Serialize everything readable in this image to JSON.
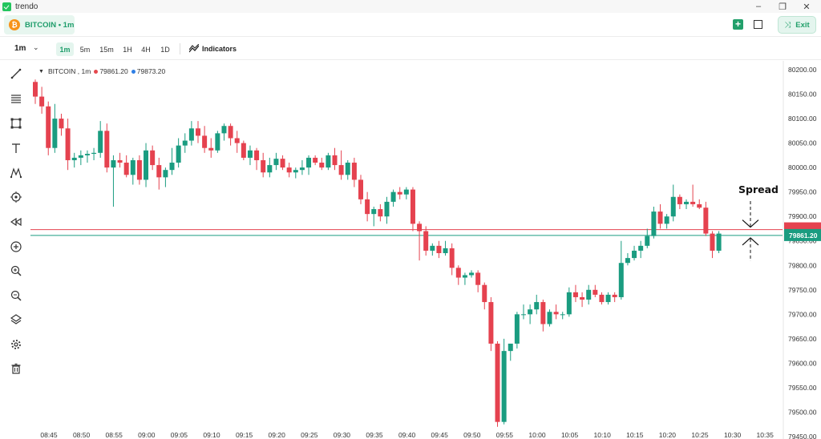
{
  "window": {
    "title": "trendo",
    "min_icon": "minimize-icon",
    "max_icon": "restore-icon",
    "close_icon": "close-icon"
  },
  "header": {
    "symbol_tab": "BITCOIN • 1m",
    "coin_glyph": "₿",
    "exit_label": "Exit",
    "add_icon": "plus-icon",
    "layout_icon": "square-icon"
  },
  "toolbar": {
    "interval": "1m",
    "timeframes": [
      {
        "label": "1m",
        "active": true
      },
      {
        "label": "5m",
        "active": false
      },
      {
        "label": "15m",
        "active": false
      },
      {
        "label": "1H",
        "active": false
      },
      {
        "label": "4H",
        "active": false
      },
      {
        "label": "1D",
        "active": false
      }
    ],
    "indicators_label": "Indicators"
  },
  "left_tools": [
    "trend-line-icon",
    "horizontal-lines-icon",
    "rectangle-icon",
    "text-icon",
    "pattern-icon",
    "target-icon",
    "rewind-icon",
    "add-icon",
    "zoom-in-icon",
    "zoom-out-icon",
    "layers-icon",
    "settings-icon",
    "trash-icon"
  ],
  "legend": {
    "symbol": "BITCOIN , 1m",
    "bid": "79861.20",
    "ask": "79873.20",
    "bid_color": "#e5484d",
    "ask_color": "#2f7fe5"
  },
  "colors": {
    "up": "#1a9c80",
    "down": "#e5424f",
    "ask_line": "#e5424f",
    "bid_line": "#1a9c80"
  },
  "annotation": {
    "text": "Spread"
  },
  "chart_data": {
    "type": "candlestick",
    "ylim": [
      79450,
      80200
    ],
    "y_ticks": [
      79450,
      79500,
      79550,
      79600,
      79650,
      79700,
      79750,
      79800,
      79850,
      79900,
      79950,
      80000,
      80050,
      80100,
      80150,
      80200
    ],
    "x_ticks": [
      "08:45",
      "08:50",
      "08:55",
      "09:00",
      "09:05",
      "09:10",
      "09:15",
      "09:20",
      "09:25",
      "09:30",
      "09:35",
      "09:40",
      "09:45",
      "09:50",
      "09:55",
      "10:00",
      "10:05",
      "10:10",
      "10:15",
      "10:20",
      "10:25",
      "10:30",
      "10:35"
    ],
    "ask_price": 79873.2,
    "bid_price": 79861.2,
    "bid_label": "79861.20",
    "candles": [
      {
        "t": "08:45",
        "o": 80175,
        "h": 80180,
        "l": 80130,
        "c": 80145
      },
      {
        "t": "08:46",
        "o": 80145,
        "h": 80165,
        "l": 80110,
        "c": 80125
      },
      {
        "t": "08:47",
        "o": 80125,
        "h": 80135,
        "l": 80025,
        "c": 80040
      },
      {
        "t": "08:48",
        "o": 80040,
        "h": 80130,
        "l": 80030,
        "c": 80100
      },
      {
        "t": "08:49",
        "o": 80100,
        "h": 80110,
        "l": 80065,
        "c": 80080
      },
      {
        "t": "08:50",
        "o": 80080,
        "h": 80100,
        "l": 79995,
        "c": 80015
      },
      {
        "t": "08:51",
        "o": 80015,
        "h": 80030,
        "l": 80000,
        "c": 80020
      },
      {
        "t": "08:52",
        "o": 80020,
        "h": 80035,
        "l": 80005,
        "c": 80025
      },
      {
        "t": "08:53",
        "o": 80025,
        "h": 80035,
        "l": 80010,
        "c": 80028
      },
      {
        "t": "08:54",
        "o": 80028,
        "h": 80040,
        "l": 80015,
        "c": 80030
      },
      {
        "t": "08:55",
        "o": 80030,
        "h": 80095,
        "l": 80020,
        "c": 80075
      },
      {
        "t": "08:56",
        "o": 80075,
        "h": 80090,
        "l": 79990,
        "c": 80000
      },
      {
        "t": "08:57",
        "o": 80000,
        "h": 80025,
        "l": 79920,
        "c": 80015
      },
      {
        "t": "08:58",
        "o": 80015,
        "h": 80030,
        "l": 80000,
        "c": 80010
      },
      {
        "t": "08:59",
        "o": 80010,
        "h": 80025,
        "l": 79980,
        "c": 79985
      },
      {
        "t": "09:00",
        "o": 79985,
        "h": 80020,
        "l": 79965,
        "c": 80015
      },
      {
        "t": "09:01",
        "o": 80015,
        "h": 80025,
        "l": 79965,
        "c": 79975
      },
      {
        "t": "09:02",
        "o": 79975,
        "h": 80050,
        "l": 79960,
        "c": 80035
      },
      {
        "t": "09:03",
        "o": 80035,
        "h": 80045,
        "l": 79995,
        "c": 80005
      },
      {
        "t": "09:04",
        "o": 80005,
        "h": 80020,
        "l": 79955,
        "c": 79980
      },
      {
        "t": "09:05",
        "o": 79980,
        "h": 80000,
        "l": 79960,
        "c": 79995
      },
      {
        "t": "09:06",
        "o": 79995,
        "h": 80040,
        "l": 79985,
        "c": 80010
      },
      {
        "t": "09:07",
        "o": 80010,
        "h": 80060,
        "l": 80000,
        "c": 80045
      },
      {
        "t": "09:08",
        "o": 80045,
        "h": 80070,
        "l": 80030,
        "c": 80055
      },
      {
        "t": "09:09",
        "o": 80055,
        "h": 80095,
        "l": 80045,
        "c": 80080
      },
      {
        "t": "09:10",
        "o": 80080,
        "h": 80095,
        "l": 80050,
        "c": 80065
      },
      {
        "t": "09:11",
        "o": 80065,
        "h": 80085,
        "l": 80030,
        "c": 80040
      },
      {
        "t": "09:12",
        "o": 80040,
        "h": 80060,
        "l": 80020,
        "c": 80035
      },
      {
        "t": "09:13",
        "o": 80035,
        "h": 80075,
        "l": 80030,
        "c": 80070
      },
      {
        "t": "09:14",
        "o": 80070,
        "h": 80090,
        "l": 80055,
        "c": 80085
      },
      {
        "t": "09:15",
        "o": 80085,
        "h": 80090,
        "l": 80045,
        "c": 80060
      },
      {
        "t": "09:16",
        "o": 80060,
        "h": 80075,
        "l": 80030,
        "c": 80050
      },
      {
        "t": "09:17",
        "o": 80050,
        "h": 80055,
        "l": 80015,
        "c": 80020
      },
      {
        "t": "09:18",
        "o": 80020,
        "h": 80045,
        "l": 80005,
        "c": 80035
      },
      {
        "t": "09:19",
        "o": 80035,
        "h": 80040,
        "l": 79995,
        "c": 80015
      },
      {
        "t": "09:20",
        "o": 80015,
        "h": 80030,
        "l": 79980,
        "c": 79990
      },
      {
        "t": "09:21",
        "o": 79990,
        "h": 80020,
        "l": 79980,
        "c": 80005
      },
      {
        "t": "09:22",
        "o": 80005,
        "h": 80030,
        "l": 79995,
        "c": 80018
      },
      {
        "t": "09:23",
        "o": 80018,
        "h": 80025,
        "l": 79995,
        "c": 80000
      },
      {
        "t": "09:24",
        "o": 80000,
        "h": 80010,
        "l": 79980,
        "c": 79990
      },
      {
        "t": "09:25",
        "o": 79990,
        "h": 80000,
        "l": 79978,
        "c": 79995
      },
      {
        "t": "09:26",
        "o": 79995,
        "h": 80015,
        "l": 79985,
        "c": 80000
      },
      {
        "t": "09:27",
        "o": 80000,
        "h": 80025,
        "l": 79985,
        "c": 80020
      },
      {
        "t": "09:28",
        "o": 80020,
        "h": 80025,
        "l": 80005,
        "c": 80010
      },
      {
        "t": "09:29",
        "o": 80010,
        "h": 80020,
        "l": 79995,
        "c": 80000
      },
      {
        "t": "09:30",
        "o": 80000,
        "h": 80030,
        "l": 79995,
        "c": 80025
      },
      {
        "t": "09:31",
        "o": 80025,
        "h": 80040,
        "l": 79995,
        "c": 80005
      },
      {
        "t": "09:32",
        "o": 80005,
        "h": 80035,
        "l": 79975,
        "c": 79985
      },
      {
        "t": "09:33",
        "o": 79985,
        "h": 80015,
        "l": 79975,
        "c": 80010
      },
      {
        "t": "09:34",
        "o": 80010,
        "h": 80020,
        "l": 79960,
        "c": 79975
      },
      {
        "t": "09:35",
        "o": 79975,
        "h": 79985,
        "l": 79925,
        "c": 79935
      },
      {
        "t": "09:36",
        "o": 79935,
        "h": 79950,
        "l": 79890,
        "c": 79905
      },
      {
        "t": "09:37",
        "o": 79905,
        "h": 79920,
        "l": 79880,
        "c": 79915
      },
      {
        "t": "09:38",
        "o": 79915,
        "h": 79925,
        "l": 79890,
        "c": 79900
      },
      {
        "t": "09:39",
        "o": 79900,
        "h": 79940,
        "l": 79885,
        "c": 79930
      },
      {
        "t": "09:40",
        "o": 79930,
        "h": 79955,
        "l": 79920,
        "c": 79950
      },
      {
        "t": "09:41",
        "o": 79950,
        "h": 79960,
        "l": 79935,
        "c": 79945
      },
      {
        "t": "09:42",
        "o": 79945,
        "h": 79960,
        "l": 79935,
        "c": 79955
      },
      {
        "t": "09:43",
        "o": 79955,
        "h": 79960,
        "l": 79870,
        "c": 79885
      },
      {
        "t": "09:44",
        "o": 79885,
        "h": 79890,
        "l": 79810,
        "c": 79870
      },
      {
        "t": "09:45",
        "o": 79870,
        "h": 79880,
        "l": 79820,
        "c": 79830
      },
      {
        "t": "09:46",
        "o": 79830,
        "h": 79845,
        "l": 79820,
        "c": 79840
      },
      {
        "t": "09:47",
        "o": 79840,
        "h": 79850,
        "l": 79815,
        "c": 79825
      },
      {
        "t": "09:48",
        "o": 79825,
        "h": 79850,
        "l": 79820,
        "c": 79835
      },
      {
        "t": "09:49",
        "o": 79835,
        "h": 79845,
        "l": 79780,
        "c": 79795
      },
      {
        "t": "09:50",
        "o": 79795,
        "h": 79800,
        "l": 79760,
        "c": 79775
      },
      {
        "t": "09:51",
        "o": 79775,
        "h": 79785,
        "l": 79760,
        "c": 79780
      },
      {
        "t": "09:52",
        "o": 79780,
        "h": 79790,
        "l": 79775,
        "c": 79785
      },
      {
        "t": "09:53",
        "o": 79785,
        "h": 79790,
        "l": 79745,
        "c": 79760
      },
      {
        "t": "09:54",
        "o": 79760,
        "h": 79765,
        "l": 79710,
        "c": 79725
      },
      {
        "t": "09:55",
        "o": 79725,
        "h": 79735,
        "l": 79625,
        "c": 79640
      },
      {
        "t": "09:56",
        "o": 79640,
        "h": 79645,
        "l": 79470,
        "c": 79480
      },
      {
        "t": "09:57",
        "o": 79480,
        "h": 79650,
        "l": 79475,
        "c": 79625
      },
      {
        "t": "09:58",
        "o": 79625,
        "h": 79640,
        "l": 79605,
        "c": 79640
      },
      {
        "t": "09:59",
        "o": 79640,
        "h": 79705,
        "l": 79630,
        "c": 79700
      },
      {
        "t": "10:00",
        "o": 79700,
        "h": 79720,
        "l": 79690,
        "c": 79700
      },
      {
        "t": "10:01",
        "o": 79700,
        "h": 79720,
        "l": 79680,
        "c": 79710
      },
      {
        "t": "10:02",
        "o": 79710,
        "h": 79740,
        "l": 79700,
        "c": 79725
      },
      {
        "t": "10:03",
        "o": 79725,
        "h": 79730,
        "l": 79665,
        "c": 79680
      },
      {
        "t": "10:04",
        "o": 79680,
        "h": 79710,
        "l": 79675,
        "c": 79705
      },
      {
        "t": "10:05",
        "o": 79705,
        "h": 79720,
        "l": 79690,
        "c": 79700
      },
      {
        "t": "10:06",
        "o": 79700,
        "h": 79705,
        "l": 79690,
        "c": 79700
      },
      {
        "t": "10:07",
        "o": 79700,
        "h": 79755,
        "l": 79695,
        "c": 79745
      },
      {
        "t": "10:08",
        "o": 79745,
        "h": 79760,
        "l": 79725,
        "c": 79735
      },
      {
        "t": "10:09",
        "o": 79735,
        "h": 79745,
        "l": 79715,
        "c": 79730
      },
      {
        "t": "10:10",
        "o": 79730,
        "h": 79760,
        "l": 79720,
        "c": 79750
      },
      {
        "t": "10:11",
        "o": 79750,
        "h": 79760,
        "l": 79735,
        "c": 79740
      },
      {
        "t": "10:12",
        "o": 79740,
        "h": 79745,
        "l": 79720,
        "c": 79725
      },
      {
        "t": "10:13",
        "o": 79725,
        "h": 79745,
        "l": 79720,
        "c": 79740
      },
      {
        "t": "10:14",
        "o": 79740,
        "h": 79745,
        "l": 79725,
        "c": 79735
      },
      {
        "t": "10:15",
        "o": 79735,
        "h": 79850,
        "l": 79730,
        "c": 79805
      },
      {
        "t": "10:16",
        "o": 79805,
        "h": 79825,
        "l": 79800,
        "c": 79815
      },
      {
        "t": "10:17",
        "o": 79815,
        "h": 79840,
        "l": 79810,
        "c": 79830
      },
      {
        "t": "10:18",
        "o": 79830,
        "h": 79850,
        "l": 79815,
        "c": 79840
      },
      {
        "t": "10:19",
        "o": 79840,
        "h": 79875,
        "l": 79835,
        "c": 79860
      },
      {
        "t": "10:20",
        "o": 79860,
        "h": 79920,
        "l": 79855,
        "c": 79910
      },
      {
        "t": "10:21",
        "o": 79910,
        "h": 79925,
        "l": 79875,
        "c": 79885
      },
      {
        "t": "10:22",
        "o": 79885,
        "h": 79905,
        "l": 79875,
        "c": 79900
      },
      {
        "t": "10:23",
        "o": 79900,
        "h": 79965,
        "l": 79890,
        "c": 79940
      },
      {
        "t": "10:24",
        "o": 79940,
        "h": 79945,
        "l": 79915,
        "c": 79925
      },
      {
        "t": "10:25",
        "o": 79925,
        "h": 79935,
        "l": 79915,
        "c": 79930
      },
      {
        "t": "10:26",
        "o": 79930,
        "h": 79965,
        "l": 79920,
        "c": 79925
      },
      {
        "t": "10:27",
        "o": 79925,
        "h": 79935,
        "l": 79915,
        "c": 79918
      },
      {
        "t": "10:28",
        "o": 79918,
        "h": 79930,
        "l": 79860,
        "c": 79865
      },
      {
        "t": "10:29",
        "o": 79865,
        "h": 79870,
        "l": 79815,
        "c": 79830
      },
      {
        "t": "10:30",
        "o": 79830,
        "h": 79870,
        "l": 79825,
        "c": 79865
      }
    ]
  }
}
